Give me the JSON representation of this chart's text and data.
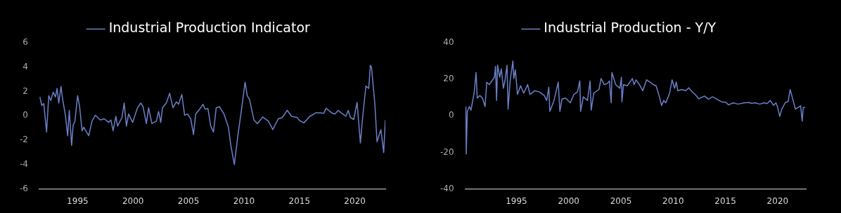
{
  "chart_data": [
    {
      "type": "line",
      "legend": "top",
      "marker": "none",
      "xlim": [
        1991.55,
        2022.75
      ],
      "ylim": [
        -6,
        6
      ],
      "xticks": [
        1995,
        2000,
        2005,
        2010,
        2015,
        2020
      ],
      "yticks": [
        -6,
        -4,
        -2,
        0,
        2,
        4,
        6
      ],
      "x": [
        1991.6,
        1991.77,
        1991.95,
        1992.2,
        1992.4,
        1992.58,
        1992.8,
        1993.0,
        1993.15,
        1993.3,
        1993.5,
        1993.67,
        1993.9,
        1994.1,
        1994.25,
        1994.46,
        1994.6,
        1994.75,
        1995.0,
        1995.17,
        1995.4,
        1995.55,
        1996.0,
        1996.3,
        1996.6,
        1997.05,
        1997.4,
        1997.8,
        1998.0,
        1998.2,
        1998.45,
        1998.6,
        1999.0,
        1999.2,
        1999.4,
        1999.6,
        1999.96,
        2000.4,
        2000.7,
        2000.9,
        2001.2,
        2001.4,
        2001.7,
        2002.1,
        2002.3,
        2002.5,
        2002.65,
        2003.0,
        2003.3,
        2003.6,
        2003.9,
        2004.1,
        2004.4,
        2004.65,
        2004.9,
        2005.2,
        2005.45,
        2005.65,
        2006.1,
        2006.3,
        2006.5,
        2006.75,
        2007.0,
        2007.25,
        2007.5,
        2007.8,
        2008.2,
        2008.6,
        2008.8,
        2009.13,
        2009.45,
        2009.8,
        2010.1,
        2010.3,
        2010.5,
        2010.9,
        2011.2,
        2011.7,
        2012.2,
        2012.6,
        2013.1,
        2013.45,
        2013.9,
        2014.3,
        2014.8,
        2015.0,
        2015.4,
        2015.95,
        2016.5,
        2016.9,
        2017.2,
        2017.4,
        2017.9,
        2018.2,
        2018.5,
        2018.9,
        2019.2,
        2019.4,
        2019.6,
        2019.9,
        2020.2,
        2020.5,
        2020.7,
        2021.0,
        2021.25,
        2021.4,
        2021.5,
        2021.8,
        2022.0,
        2022.35,
        2022.6,
        2022.75
      ],
      "series": [
        {
          "name": "Industrial Production Indicator",
          "color": "#6a80c8",
          "values": [
            1.55,
            0.85,
            1.0,
            -1.33,
            1.65,
            1.25,
            1.95,
            1.55,
            2.25,
            1.05,
            2.4,
            1.25,
            0.05,
            -1.63,
            0.45,
            -2.43,
            -0.74,
            -0.5,
            1.65,
            0.85,
            -1.23,
            -0.94,
            -1.63,
            -0.44,
            0.05,
            -0.34,
            -0.24,
            -0.54,
            -0.34,
            -1.23,
            -0.04,
            -0.84,
            -0.14,
            1.05,
            -0.84,
            0.15,
            -0.54,
            0.66,
            1.05,
            0.75,
            -0.64,
            0.66,
            -0.64,
            -0.44,
            0.35,
            -0.54,
            0.66,
            1.05,
            1.85,
            0.66,
            1.15,
            0.95,
            1.75,
            0.05,
            0.15,
            -0.24,
            -1.53,
            0.15,
            0.66,
            0.95,
            0.55,
            0.6,
            -0.84,
            -1.33,
            0.66,
            0.75,
            0.15,
            -0.94,
            -2.33,
            -4.0,
            -1.63,
            0.66,
            2.75,
            1.65,
            1.35,
            -0.34,
            -0.64,
            -0.1,
            -0.44,
            -1.13,
            -0.24,
            -0.14,
            0.45,
            -0.04,
            -0.14,
            -0.38,
            -0.58,
            -0.04,
            0.25,
            0.25,
            0.2,
            0.62,
            0.25,
            0.15,
            0.45,
            0.15,
            -0.04,
            0.45,
            -0.14,
            -0.3,
            1.1,
            -2.23,
            -0.14,
            2.45,
            2.25,
            4.14,
            4.0,
            1.05,
            -2.13,
            -1.13,
            -3.02,
            -0.34
          ]
        }
      ]
    },
    {
      "type": "line",
      "legend": "top",
      "marker": "none",
      "xlim": [
        1990.1,
        2022.7
      ],
      "ylim": [
        -40,
        40
      ],
      "xticks": [
        1995,
        2000,
        2005,
        2010,
        2015,
        2020
      ],
      "yticks": [
        -40,
        -20,
        0,
        20,
        40
      ],
      "x": [
        1990.16,
        1990.2,
        1990.3,
        1990.5,
        1990.65,
        1990.95,
        1991.14,
        1991.25,
        1991.5,
        1991.75,
        1992.0,
        1992.16,
        1992.4,
        1992.65,
        1992.9,
        1993.0,
        1993.1,
        1993.2,
        1993.4,
        1993.55,
        1993.75,
        1993.9,
        1994.1,
        1994.2,
        1994.4,
        1994.66,
        1994.75,
        1994.9,
        1995.1,
        1995.4,
        1995.7,
        1996.07,
        1996.3,
        1996.75,
        1997.2,
        1997.66,
        1997.9,
        1998.1,
        1998.2,
        1998.6,
        1999.0,
        1999.16,
        1999.35,
        1999.7,
        2000.16,
        2000.5,
        2000.84,
        2001.07,
        2001.14,
        2001.4,
        2001.8,
        2002.05,
        2002.16,
        2002.4,
        2002.9,
        2003.1,
        2003.4,
        2003.7,
        2003.9,
        2004.07,
        2004.14,
        2004.5,
        2004.9,
        2005.05,
        2005.1,
        2005.25,
        2005.6,
        2006.1,
        2006.26,
        2006.45,
        2006.77,
        2007.1,
        2007.45,
        2007.8,
        2008.1,
        2008.37,
        2008.65,
        2008.9,
        2009.1,
        2009.3,
        2009.66,
        2009.9,
        2010.14,
        2010.3,
        2010.45,
        2010.83,
        2011.2,
        2011.5,
        2011.76,
        2012.1,
        2012.45,
        2013.0,
        2013.37,
        2013.76,
        2014.2,
        2014.6,
        2015.05,
        2015.3,
        2015.76,
        2016.2,
        2016.8,
        2017.25,
        2017.5,
        2017.85,
        2018.3,
        2018.66,
        2019.0,
        2019.3,
        2019.6,
        2019.84,
        2020.0,
        2020.2,
        2020.4,
        2020.74,
        2021.0,
        2021.2,
        2021.45,
        2021.7,
        2022.0,
        2022.2,
        2022.35,
        2022.45,
        2022.63
      ],
      "series": [
        {
          "name": "Industrial Production - Y/Y",
          "color": "#6a80c8",
          "values": [
            5.1,
            -20.9,
            2.4,
            5.1,
            3.1,
            12.4,
            23.7,
            9.7,
            11.1,
            9.7,
            5.1,
            18.4,
            17.1,
            19.1,
            21.1,
            27.1,
            8.4,
            27.7,
            21.1,
            25.7,
            15.1,
            19.1,
            27.7,
            3.7,
            19.1,
            30.0,
            20.4,
            25.1,
            11.7,
            16.4,
            12.4,
            17.1,
            11.7,
            13.7,
            13.1,
            11.1,
            8.4,
            15.7,
            2.4,
            8.4,
            18.4,
            2.4,
            9.1,
            9.7,
            7.1,
            11.7,
            13.1,
            19.1,
            2.4,
            10.4,
            8.4,
            19.1,
            3.1,
            12.4,
            14.4,
            20.4,
            17.1,
            17.7,
            19.1,
            7.1,
            23.7,
            17.1,
            15.1,
            21.1,
            7.7,
            17.1,
            16.4,
            20.4,
            17.1,
            19.7,
            17.1,
            13.7,
            19.7,
            18.4,
            17.1,
            16.4,
            11.1,
            5.7,
            8.4,
            7.1,
            12.4,
            19.7,
            15.1,
            18.4,
            13.7,
            14.4,
            13.7,
            15.3,
            13.5,
            11.7,
            9.3,
            10.8,
            9.1,
            10.4,
            9.1,
            7.7,
            7.3,
            6.0,
            7.1,
            6.4,
            7.1,
            7.3,
            6.8,
            7.1,
            6.4,
            7.1,
            6.7,
            8.4,
            5.7,
            7.1,
            4.7,
            -0.3,
            3.7,
            7.3,
            7.7,
            14.4,
            9.1,
            3.7,
            4.7,
            5.5,
            -2.9,
            4.4,
            4.7
          ]
        }
      ]
    }
  ]
}
